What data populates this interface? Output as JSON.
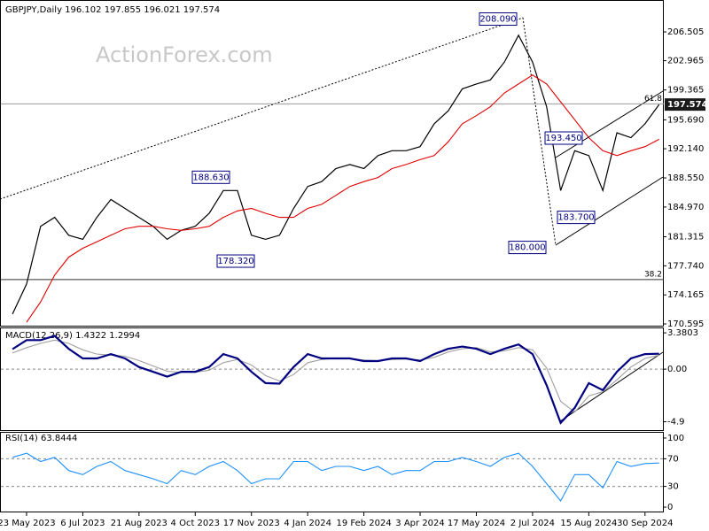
{
  "chart_data": [
    {
      "type": "line",
      "title": "GBPJPY,Daily  196.102 197.855 196.021 197.574",
      "watermark": "ActionForex.com",
      "grid": false,
      "ylim": [
        170.27,
        210.43
      ],
      "yticks": [
        170.595,
        174.165,
        {
          "value": 177.74,
          "label": "177.740"
        },
        181.315,
        {
          "value": 184.97,
          "label": "184.970"
        },
        {
          "value": 188.55,
          "label": "188.550"
        },
        {
          "value": 192.14,
          "label": "192.140"
        },
        {
          "value": 195.69,
          "label": "195.690"
        },
        199.365,
        202.965,
        206.505
      ],
      "last_price": 197.574,
      "levels": [
        {
          "value": 197.66,
          "label": "61.8"
        },
        {
          "value": 176.05,
          "label": "38.2"
        }
      ],
      "annotations": [
        {
          "value": 208.09,
          "label": "208.090"
        },
        {
          "value": 188.63,
          "label": "188.630"
        },
        {
          "value": 178.32,
          "label": "178.320"
        },
        {
          "value": 193.45,
          "label": "193.450"
        },
        {
          "value": 183.7,
          "label": "183.700"
        },
        {
          "value": 180.0,
          "label": "180.000"
        }
      ],
      "series": [
        {
          "color": "#000000",
          "values": [
            171.8,
            175.5,
            182.6,
            183.7,
            181.5,
            181.0,
            183.7,
            185.9,
            184.8,
            183.7,
            182.6,
            181.0,
            182.1,
            182.6,
            184.2,
            187.0,
            187.0,
            181.5,
            181.0,
            181.5,
            184.8,
            187.5,
            188.1,
            189.7,
            190.2,
            189.7,
            191.3,
            191.9,
            191.9,
            192.4,
            195.2,
            196.8,
            199.5,
            200.1,
            200.6,
            202.8,
            206.1,
            202.8,
            197.3,
            187.0,
            191.9,
            191.3,
            187.0,
            194.1,
            193.5,
            195.2,
            197.574
          ]
        },
        {
          "color": "#e00000",
          "values": [
            null,
            170.8,
            173.3,
            176.6,
            178.8,
            179.9,
            180.7,
            181.5,
            182.3,
            182.6,
            182.6,
            182.3,
            182.1,
            182.3,
            182.6,
            183.7,
            184.5,
            184.8,
            184.2,
            183.7,
            183.7,
            184.8,
            185.3,
            186.4,
            187.5,
            188.1,
            188.6,
            189.7,
            190.2,
            190.8,
            191.3,
            193.0,
            195.2,
            196.2,
            197.3,
            199.0,
            200.1,
            201.2,
            200.1,
            197.9,
            195.7,
            193.5,
            191.9,
            191.3,
            191.9,
            192.4,
            193.3
          ]
        }
      ]
    },
    {
      "type": "line",
      "title": "MACD(12,26,9) 1.4322 1.2994",
      "grid": true,
      "ylim": [
        -5.76,
        3.8
      ],
      "yticks": [
        3.3803,
        {
          "value": 0,
          "label": "0.00"
        },
        -4.9
      ],
      "series": [
        {
          "color": "#a0a0a0",
          "values": [
            1.5,
            2.0,
            2.4,
            2.7,
            2.4,
            1.8,
            1.4,
            1.3,
            1.2,
            0.8,
            0.3,
            -0.2,
            -0.3,
            -0.3,
            -0.1,
            0.6,
            0.9,
            0.4,
            -0.6,
            -1.1,
            -0.5,
            0.6,
            0.9,
            1.0,
            1.0,
            0.85,
            0.8,
            0.9,
            0.95,
            0.85,
            1.1,
            1.6,
            1.9,
            2.0,
            1.6,
            1.7,
            2.0,
            1.8,
            0.1,
            -3.0,
            -4.0,
            -2.5,
            -2.1,
            -1.0,
            0.2,
            1.0,
            1.2994
          ]
        },
        {
          "color": "#000080",
          "values": [
            1.86,
            2.7,
            2.7,
            3.1,
            1.9,
            1.0,
            1.0,
            1.4,
            1.0,
            0.2,
            -0.25,
            -0.7,
            -0.25,
            -0.25,
            0.2,
            1.4,
            1.0,
            -0.25,
            -1.3,
            -1.35,
            0.2,
            1.4,
            1.0,
            1.0,
            1.0,
            0.75,
            0.75,
            1.0,
            1.0,
            0.75,
            1.4,
            1.9,
            2.1,
            1.9,
            1.4,
            1.9,
            2.3,
            1.4,
            -1.5,
            -5.0,
            -3.6,
            -1.3,
            -1.95,
            -0.25,
            1.0,
            1.4,
            1.4322
          ]
        }
      ]
    },
    {
      "type": "line",
      "title": "RSI(14) 63.8444",
      "grid": true,
      "ylim": [
        -7.6,
        107.6
      ],
      "yticks": [
        100,
        70,
        30,
        0
      ],
      "categories": [
        null,
        "23 May 2023",
        null,
        null,
        null,
        "6 Jul 2023",
        null,
        null,
        null,
        "21 Aug 2023",
        null,
        null,
        null,
        "4 Oct 2023",
        null,
        null,
        null,
        "17 Nov 2023",
        null,
        null,
        null,
        "4 Jan 2024",
        null,
        null,
        null,
        "19 Feb 2024",
        null,
        null,
        null,
        "3 Apr 2024",
        null,
        null,
        null,
        "17 May 2024",
        null,
        null,
        null,
        "2 Jul 2024",
        null,
        null,
        null,
        "15 Aug 2024",
        null,
        null,
        null,
        "30 Sep 2024",
        null
      ],
      "series": [
        {
          "color": "#1e90ff",
          "values": [
            72,
            78,
            66,
            72,
            53,
            47,
            59,
            66,
            53,
            47,
            41,
            34,
            53,
            47,
            59,
            66,
            53,
            34,
            41,
            41,
            66,
            66,
            53,
            59,
            59,
            53,
            59,
            47,
            53,
            53,
            66,
            66,
            72,
            66,
            59,
            72,
            78,
            59,
            34,
            9,
            47,
            47,
            28,
            66,
            59,
            63,
            63.8444
          ]
        }
      ]
    }
  ]
}
